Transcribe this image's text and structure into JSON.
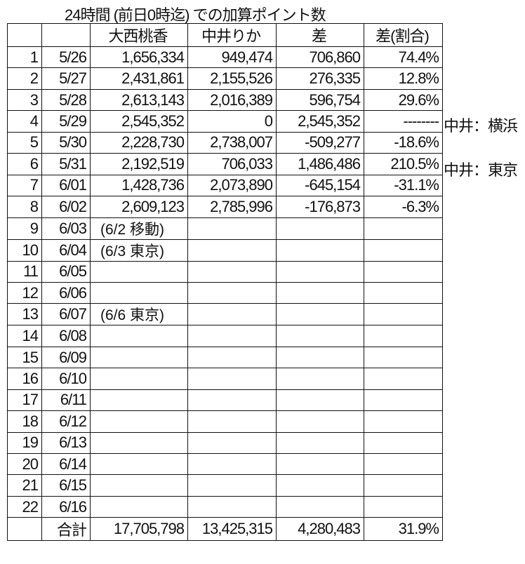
{
  "title": "24時間 (前日0時迄) での加算ポイント数",
  "headers": [
    "",
    "",
    "大西桃香",
    "中井りか",
    "差",
    "差(割合)"
  ],
  "rows": [
    [
      "1",
      "5/26",
      "1,656,334",
      "949,474",
      "706,860",
      "74.4%"
    ],
    [
      "2",
      "5/27",
      "2,431,861",
      "2,155,526",
      "276,335",
      "12.8%"
    ],
    [
      "3",
      "5/28",
      "2,613,143",
      "2,016,389",
      "596,754",
      "29.6%"
    ],
    [
      "4",
      "5/29",
      "2,545,352",
      "0",
      "2,545,352",
      "--------"
    ],
    [
      "5",
      "5/30",
      "2,228,730",
      "2,738,007",
      "-509,277",
      "-18.6%"
    ],
    [
      "6",
      "5/31",
      "2,192,519",
      "706,033",
      "1,486,486",
      "210.5%"
    ],
    [
      "7",
      "6/01",
      "1,428,736",
      "2,073,890",
      "-645,154",
      "-31.1%"
    ],
    [
      "8",
      "6/02",
      "2,609,123",
      "2,785,996",
      "-176,873",
      "-6.3%"
    ],
    [
      "9",
      "6/03",
      "(6/2 移動)",
      "",
      "",
      ""
    ],
    [
      "10",
      "6/04",
      "(6/3 東京)",
      "",
      "",
      ""
    ],
    [
      "11",
      "6/05",
      "",
      "",
      "",
      ""
    ],
    [
      "12",
      "6/06",
      "",
      "",
      "",
      ""
    ],
    [
      "13",
      "6/07",
      "(6/6 東京)",
      "",
      "",
      ""
    ],
    [
      "14",
      "6/08",
      "",
      "",
      "",
      ""
    ],
    [
      "15",
      "6/09",
      "",
      "",
      "",
      ""
    ],
    [
      "16",
      "6/10",
      "",
      "",
      "",
      ""
    ],
    [
      "17",
      "6/11",
      "",
      "",
      "",
      ""
    ],
    [
      "18",
      "6/12",
      "",
      "",
      "",
      ""
    ],
    [
      "19",
      "6/13",
      "",
      "",
      "",
      ""
    ],
    [
      "20",
      "6/14",
      "",
      "",
      "",
      ""
    ],
    [
      "21",
      "6/15",
      "",
      "",
      "",
      ""
    ],
    [
      "22",
      "6/16",
      "",
      "",
      "",
      ""
    ]
  ],
  "total": [
    "",
    "合計",
    "17,705,798",
    "13,425,315",
    "4,280,483",
    "31.9%"
  ],
  "side_notes": [
    {
      "row": 4,
      "text": "中井：横浜"
    },
    {
      "row": 6,
      "text": "中井：東京"
    }
  ]
}
